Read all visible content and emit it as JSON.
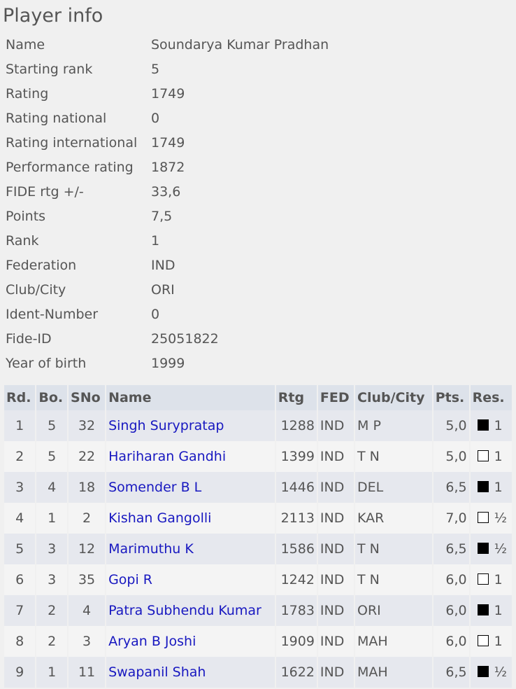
{
  "title": "Player info",
  "info": [
    [
      "Name",
      "Soundarya Kumar Pradhan"
    ],
    [
      "Starting rank",
      "5"
    ],
    [
      "Rating",
      "1749"
    ],
    [
      "Rating national",
      "0"
    ],
    [
      "Rating international",
      "1749"
    ],
    [
      "Performance rating",
      "1872"
    ],
    [
      "FIDE rtg +/-",
      "33,6"
    ],
    [
      "Points",
      "7,5"
    ],
    [
      "Rank",
      "1"
    ],
    [
      "Federation",
      "IND"
    ],
    [
      "Club/City",
      "ORI"
    ],
    [
      "Ident-Number",
      "0"
    ],
    [
      "Fide-ID",
      "25051822"
    ],
    [
      "Year of birth",
      "1999"
    ]
  ],
  "headers": [
    "Rd.",
    "Bo.",
    "SNo",
    "Name",
    "Rtg",
    "FED",
    "Club/City",
    "Pts.",
    "Res."
  ],
  "rows": [
    {
      "rd": "1",
      "bo": "5",
      "sno": "32",
      "name": "Singh Surypratap",
      "rtg": "1288",
      "fed": "IND",
      "club": "M P",
      "pts": "5,0",
      "color": "black",
      "res": "1"
    },
    {
      "rd": "2",
      "bo": "5",
      "sno": "22",
      "name": "Hariharan Gandhi",
      "rtg": "1399",
      "fed": "IND",
      "club": "T N",
      "pts": "5,0",
      "color": "white",
      "res": "1"
    },
    {
      "rd": "3",
      "bo": "4",
      "sno": "18",
      "name": "Somender B L",
      "rtg": "1446",
      "fed": "IND",
      "club": "DEL",
      "pts": "6,5",
      "color": "black",
      "res": "1"
    },
    {
      "rd": "4",
      "bo": "1",
      "sno": "2",
      "name": "Kishan Gangolli",
      "rtg": "2113",
      "fed": "IND",
      "club": "KAR",
      "pts": "7,0",
      "color": "white",
      "res": "½"
    },
    {
      "rd": "5",
      "bo": "3",
      "sno": "12",
      "name": "Marimuthu K",
      "rtg": "1586",
      "fed": "IND",
      "club": "T N",
      "pts": "6,5",
      "color": "black",
      "res": "½"
    },
    {
      "rd": "6",
      "bo": "3",
      "sno": "35",
      "name": "Gopi R",
      "rtg": "1242",
      "fed": "IND",
      "club": "T N",
      "pts": "6,0",
      "color": "white",
      "res": "1"
    },
    {
      "rd": "7",
      "bo": "2",
      "sno": "4",
      "name": "Patra Subhendu Kumar",
      "rtg": "1783",
      "fed": "IND",
      "club": "ORI",
      "pts": "6,0",
      "color": "black",
      "res": "1"
    },
    {
      "rd": "8",
      "bo": "2",
      "sno": "3",
      "name": "Aryan B Joshi",
      "rtg": "1909",
      "fed": "IND",
      "club": "MAH",
      "pts": "6,0",
      "color": "white",
      "res": "1"
    },
    {
      "rd": "9",
      "bo": "1",
      "sno": "11",
      "name": "Swapanil Shah",
      "rtg": "1622",
      "fed": "IND",
      "club": "MAH",
      "pts": "6,5",
      "color": "black",
      "res": "½"
    }
  ]
}
